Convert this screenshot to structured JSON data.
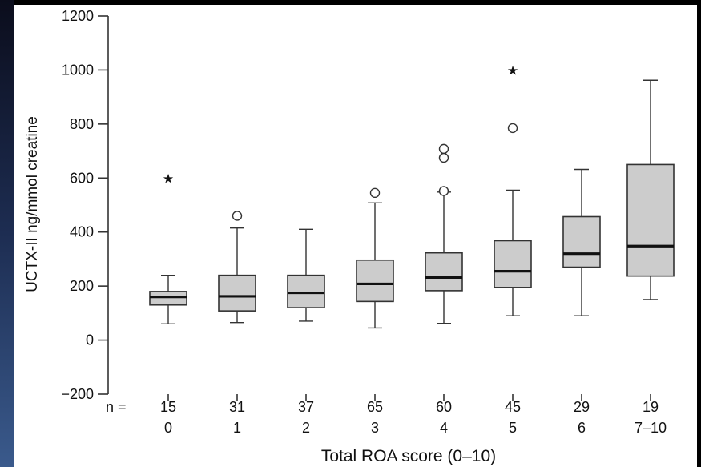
{
  "chart_data": {
    "type": "boxplot",
    "title": "",
    "xlabel": "Total ROA score (0–10)",
    "ylabel": "UCTX-II ng/mmol creatine",
    "ylim": [
      -200,
      1200
    ],
    "yticks": [
      -200,
      0,
      200,
      400,
      600,
      800,
      1000,
      1200
    ],
    "n_label": "n =",
    "grid": false,
    "categories": [
      "0",
      "1",
      "2",
      "3",
      "4",
      "5",
      "6",
      "7–10"
    ],
    "n": [
      "15",
      "31",
      "37",
      "65",
      "60",
      "45",
      "29",
      "19"
    ],
    "boxes": [
      {
        "low": 60,
        "q1": 130,
        "median": 160,
        "q3": 180,
        "high": 240,
        "outliers": [],
        "extremes": [
          600
        ]
      },
      {
        "low": 65,
        "q1": 108,
        "median": 162,
        "q3": 240,
        "high": 415,
        "outliers": [
          460
        ],
        "extremes": []
      },
      {
        "low": 70,
        "q1": 120,
        "median": 175,
        "q3": 240,
        "high": 410,
        "outliers": [],
        "extremes": []
      },
      {
        "low": 45,
        "q1": 143,
        "median": 208,
        "q3": 296,
        "high": 508,
        "outliers": [
          545
        ],
        "extremes": []
      },
      {
        "low": 62,
        "q1": 183,
        "median": 232,
        "q3": 323,
        "high": 548,
        "outliers": [
          552,
          675,
          708
        ],
        "extremes": []
      },
      {
        "low": 90,
        "q1": 195,
        "median": 255,
        "q3": 368,
        "high": 555,
        "outliers": [
          785
        ],
        "extremes": [
          1000
        ]
      },
      {
        "low": 90,
        "q1": 270,
        "median": 320,
        "q3": 457,
        "high": 632,
        "outliers": [],
        "extremes": []
      },
      {
        "low": 150,
        "q1": 237,
        "median": 348,
        "q3": 650,
        "high": 962,
        "outliers": [],
        "extremes": []
      }
    ],
    "colors": {
      "box_fill": "#cccccc",
      "stroke": "#333333",
      "median": "#111111"
    }
  }
}
